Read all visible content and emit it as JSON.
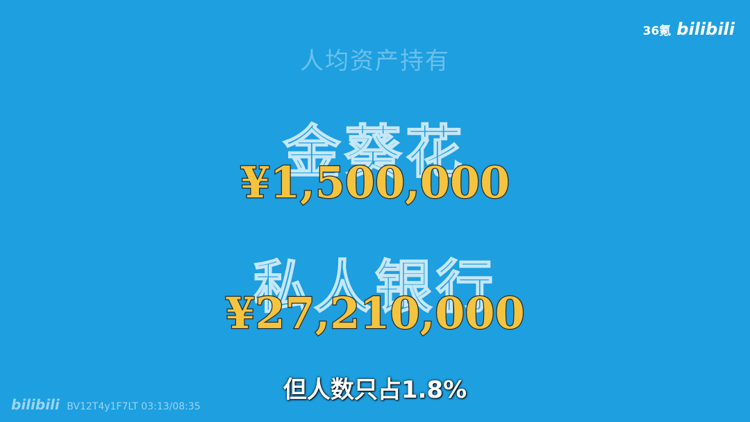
{
  "watermark": {
    "brand": "36氪",
    "logo": "bilibili"
  },
  "title": "人均资产持有",
  "items": [
    {
      "label": "金葵花",
      "amount": "¥1,500,000"
    },
    {
      "label": "私人银行",
      "amount": "¥27,210,000"
    }
  ],
  "subtitle": "但人数只占1.8%",
  "footer": {
    "logo": "bilibili",
    "video_id": "BV12T4y1F7LT",
    "timestamp": "03:13/08:35"
  }
}
